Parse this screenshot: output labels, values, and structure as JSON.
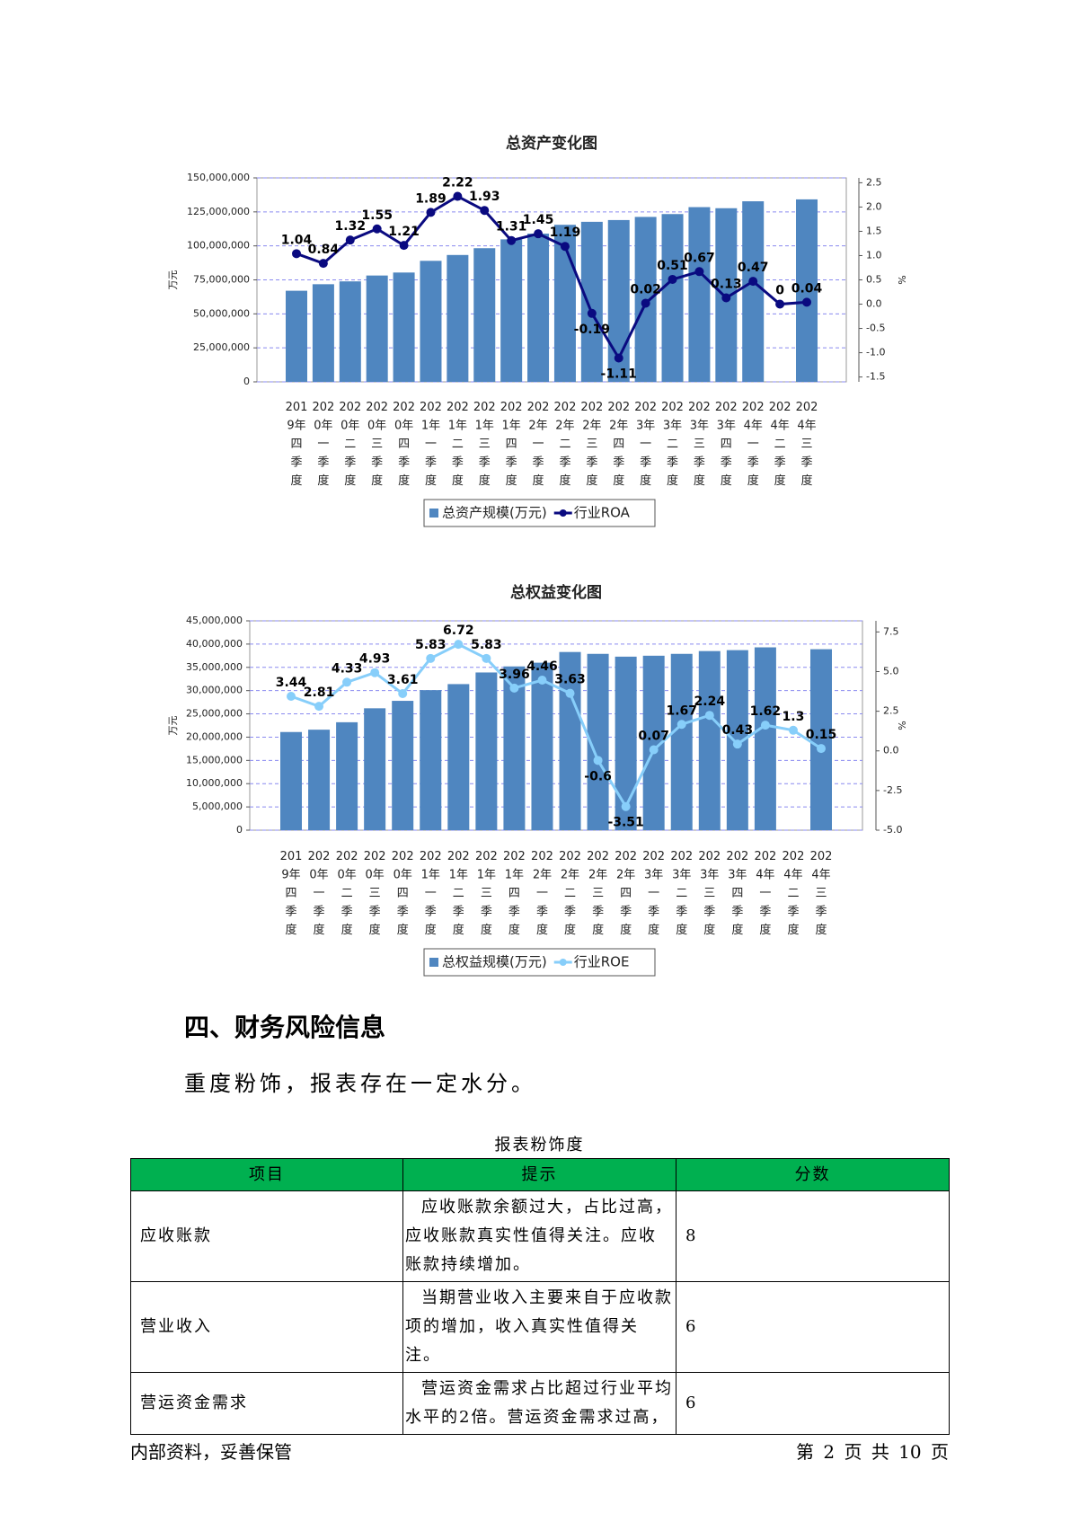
{
  "chart_data": [
    {
      "type": "bar",
      "title": "总资产变化图",
      "y_label": "万元",
      "y2_label": "%",
      "categories": [
        "2019年四季度",
        "2020年一季度",
        "2020年二季度",
        "2020年三季度",
        "2020年四季度",
        "2021年一季度",
        "2021年二季度",
        "2021年三季度",
        "2021年四季度",
        "2022年一季度",
        "2022年二季度",
        "2022年三季度",
        "2022年四季度",
        "2023年一季度",
        "2023年二季度",
        "2023年三季度",
        "2023年四季度",
        "2024年一季度",
        "2024年二季度",
        "2024年三季度"
      ],
      "series": [
        {
          "name": "总资产规模(万元)",
          "type": "bar",
          "color": "#4f86c0",
          "values": [
            67000000,
            71800000,
            73900000,
            78200000,
            80400000,
            89000000,
            93300000,
            98300000,
            104800000,
            109000000,
            115500000,
            117700000,
            119000000,
            121300000,
            123400000,
            128500000,
            127700000,
            132800000,
            null,
            134200000
          ]
        },
        {
          "name": "行业ROA",
          "type": "line",
          "axis": "y2",
          "color": "#0a0a80",
          "values": [
            1.04,
            0.84,
            1.32,
            1.55,
            1.21,
            1.89,
            2.22,
            1.93,
            1.31,
            1.45,
            1.19,
            -0.19,
            -1.11,
            0.02,
            0.51,
            0.67,
            0.13,
            0.47,
            0,
            0.04
          ]
        }
      ],
      "ylim": [
        0,
        150000000
      ],
      "yticks": [
        0,
        {
          "value": 25000000,
          "label": "25,000,000"
        },
        {
          "value": 50000000,
          "label": "50,000,000"
        },
        {
          "value": 75000000,
          "label": "75,000,000"
        },
        {
          "value": 100000000,
          "label": "100,000,000"
        },
        {
          "value": 125000000,
          "label": "125,000,000"
        },
        {
          "value": 150000000,
          "label": "150,000,000"
        }
      ],
      "y2lim": [
        -1.6,
        2.6
      ],
      "y2ticks": [
        -1.5,
        {
          "value": -1,
          "label": "-1.0"
        },
        -0.5,
        {
          "value": 0,
          "label": "0.0"
        },
        0.5,
        {
          "value": 1,
          "label": "1.0"
        },
        1.5,
        {
          "value": 2,
          "label": "2.0"
        },
        2.5
      ],
      "grid": true,
      "legend": "bottom"
    },
    {
      "type": "bar",
      "title": "总权益变化图",
      "y_label": "万元",
      "y2_label": "%",
      "categories": [
        "2019年四季度",
        "2020年一季度",
        "2020年二季度",
        "2020年三季度",
        "2020年四季度",
        "2021年一季度",
        "2021年二季度",
        "2021年三季度",
        "2021年四季度",
        "2022年一季度",
        "2022年二季度",
        "2022年三季度",
        "2022年四季度",
        "2023年一季度",
        "2023年二季度",
        "2023年三季度",
        "2023年四季度",
        "2024年一季度",
        "2024年二季度",
        "2024年三季度"
      ],
      "series": [
        {
          "name": "总权益规模(万元)",
          "type": "bar",
          "color": "#4f86c0",
          "values": [
            21100000,
            21600000,
            23200000,
            26200000,
            27800000,
            30100000,
            31400000,
            33900000,
            35200000,
            36000000,
            38300000,
            37900000,
            37300000,
            37500000,
            37900000,
            38500000,
            38700000,
            39300000,
            null,
            38900000
          ]
        },
        {
          "name": "行业ROE",
          "type": "line",
          "axis": "y2",
          "color": "#87cefa",
          "values": [
            3.44,
            2.81,
            4.33,
            4.93,
            3.61,
            5.83,
            6.72,
            5.83,
            3.96,
            4.46,
            3.63,
            -0.6,
            -3.51,
            0.07,
            1.67,
            2.24,
            0.43,
            1.62,
            1.3,
            0.15
          ]
        }
      ],
      "ylim": [
        0,
        45000000
      ],
      "yticks": [
        0,
        {
          "value": 5000000,
          "label": "5,000,000"
        },
        {
          "value": 10000000,
          "label": "10,000,000"
        },
        {
          "value": 15000000,
          "label": "15,000,000"
        },
        {
          "value": 20000000,
          "label": "20,000,000"
        },
        {
          "value": 25000000,
          "label": "25,000,000"
        },
        {
          "value": 30000000,
          "label": "30,000,000"
        },
        {
          "value": 35000000,
          "label": "35,000,000"
        },
        {
          "value": 40000000,
          "label": "40,000,000"
        },
        {
          "value": 45000000,
          "label": "45,000,000"
        }
      ],
      "y2lim": [
        -5,
        8.2
      ],
      "y2ticks": [
        {
          "value": -5,
          "label": "-5.0"
        },
        -2.5,
        {
          "value": 0,
          "label": "0.0"
        },
        2.5,
        {
          "value": 5,
          "label": "5.0"
        },
        7.5
      ],
      "grid": true,
      "legend": "bottom"
    }
  ],
  "section": {
    "heading": "四、财务风险信息",
    "text": "重度粉饰，报表存在一定水分。"
  },
  "table": {
    "caption": "报表粉饰度",
    "header": [
      "项目",
      "提示",
      "分数"
    ],
    "rows": [
      [
        "应收账款",
        "应收账款余额过大，占比过高，应收账款真实性值得关注。应收账款持续增加。",
        "8"
      ],
      [
        "营业收入",
        "当期营业收入主要来自于应收款项的增加，收入真实性值得关注。",
        "6"
      ],
      [
        "营运资金需求",
        "营运资金需求占比超过行业平均水平的2倍。营运资金需求过高，",
        "6"
      ]
    ]
  },
  "footer": {
    "left": "内部资料，妥善保管",
    "right": "第 2 页 共 10 页"
  }
}
